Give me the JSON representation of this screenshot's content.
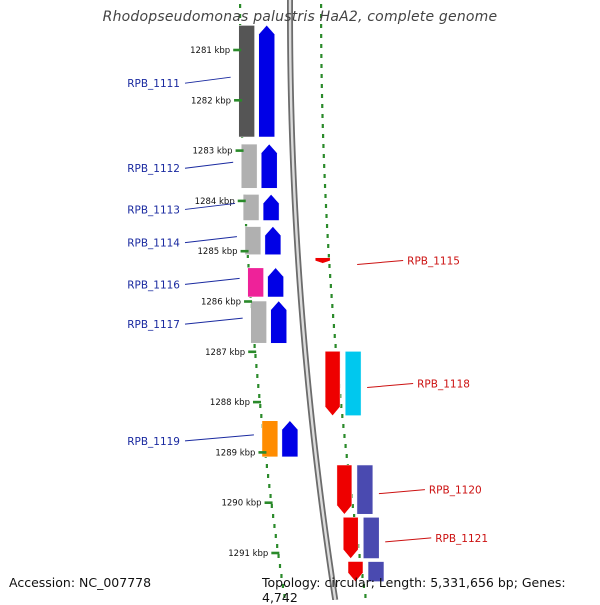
{
  "title": "Rhodopseudomonas palustris HaA2, complete genome",
  "footer": {
    "accession": "Accession: NC_007778",
    "topology": "Topology: circular; Length: 5,331,656 bp; Genes: 4,742"
  },
  "colors": {
    "backbone": "#9a9a9a",
    "forward_label": "#1a2aa0",
    "reverse_label": "#cc1111",
    "tick": "#2a8a2a",
    "blue": "#0000e6",
    "red": "#ee0000",
    "cyan": "#00c8ee",
    "purple": "#4a4ab0",
    "orange": "#ff8c00",
    "magenta": "#ee2299",
    "gray": "#b0b0b0",
    "dark_gray": "#555555"
  },
  "ticks": [
    {
      "label": "1281 kbp",
      "kbp": 1281
    },
    {
      "label": "1282 kbp",
      "kbp": 1282
    },
    {
      "label": "1283 kbp",
      "kbp": 1283
    },
    {
      "label": "1284 kbp",
      "kbp": 1284
    },
    {
      "label": "1285 kbp",
      "kbp": 1285
    },
    {
      "label": "1286 kbp",
      "kbp": 1286
    },
    {
      "label": "1287 kbp",
      "kbp": 1287
    },
    {
      "label": "1288 kbp",
      "kbp": 1288
    },
    {
      "label": "1289 kbp",
      "kbp": 1289
    },
    {
      "label": "1290 kbp",
      "kbp": 1290
    },
    {
      "label": "1291 kbp",
      "kbp": 1291
    }
  ],
  "genes": [
    {
      "label": "RPB_1111",
      "strand": "forward",
      "start_kbp": 1280.48,
      "end_kbp": 1282.76,
      "color": "blue",
      "bar": "dark_gray"
    },
    {
      "label": "RPB_1112",
      "strand": "forward",
      "start_kbp": 1282.84,
      "end_kbp": 1283.78,
      "color": "blue",
      "bar": "gray"
    },
    {
      "label": "RPB_1113",
      "strand": "forward",
      "start_kbp": 1283.84,
      "end_kbp": 1284.42,
      "color": "blue",
      "bar": "gray"
    },
    {
      "label": "RPB_1114",
      "strand": "forward",
      "start_kbp": 1284.48,
      "end_kbp": 1285.1,
      "color": "blue",
      "bar": "gray"
    },
    {
      "label": "RPB_1115",
      "strand": "reverse",
      "start_kbp": 1285.1,
      "end_kbp": 1285.27,
      "color": "red",
      "bar": null
    },
    {
      "label": "RPB_1116",
      "strand": "forward",
      "start_kbp": 1285.3,
      "end_kbp": 1285.94,
      "color": "blue",
      "bar": "magenta"
    },
    {
      "label": "RPB_1117",
      "strand": "forward",
      "start_kbp": 1285.96,
      "end_kbp": 1286.86,
      "color": "blue",
      "bar": "gray"
    },
    {
      "label": "RPB_1118",
      "strand": "reverse",
      "start_kbp": 1286.96,
      "end_kbp": 1288.3,
      "color": "red",
      "bar": "cyan"
    },
    {
      "label": "RPB_1119",
      "strand": "forward",
      "start_kbp": 1288.34,
      "end_kbp": 1289.12,
      "color": "blue",
      "bar": "orange"
    },
    {
      "label": "RPB_1120",
      "strand": "reverse",
      "start_kbp": 1289.22,
      "end_kbp": 1290.26,
      "color": "red",
      "bar": "purple"
    },
    {
      "label": "RPB_1121",
      "strand": "reverse",
      "start_kbp": 1290.26,
      "end_kbp": 1291.14,
      "color": "red",
      "bar": "purple"
    },
    {
      "label": "",
      "strand": "reverse",
      "start_kbp": 1291.14,
      "end_kbp": 1291.6,
      "color": "red",
      "bar": "purple"
    }
  ]
}
